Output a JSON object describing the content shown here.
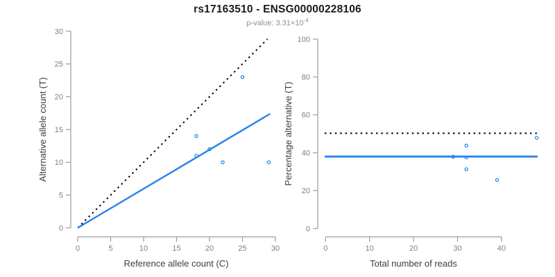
{
  "header": {
    "title": "rs17163510 - ENSG00000228106",
    "subtitle_prefix": "p-value: 3.31×10",
    "subtitle_exponent": "-4"
  },
  "colors": {
    "accent_blue": "#2583E8",
    "reference_black": "#000000",
    "axis_line_gray": "#9a9a9a",
    "tick_label_gray": "#7f7f7f",
    "axis_title_gray": "#3d3d3d",
    "title_black": "#1a1a1a",
    "subtitle_gray": "#8f8f8f"
  },
  "chart_data": [
    {
      "type": "scatter",
      "name": "allele-counts-panel",
      "xlabel": "Reference allele count (C)",
      "ylabel": "Alternative allele count (T)",
      "xlim": [
        0,
        30
      ],
      "ylim": [
        0,
        30
      ],
      "xticks": [
        0,
        5,
        10,
        15,
        20,
        25,
        30
      ],
      "yticks": [
        0,
        5,
        10,
        15,
        20,
        25,
        30
      ],
      "grid": false,
      "legend": "none",
      "points": [
        {
          "x": 25,
          "y": 23
        },
        {
          "x": 18,
          "y": 14
        },
        {
          "x": 20,
          "y": 12
        },
        {
          "x": 18,
          "y": 11
        },
        {
          "x": 22,
          "y": 10
        },
        {
          "x": 29,
          "y": 10
        }
      ],
      "lines": [
        {
          "name": "identity-line",
          "style": "dotted",
          "color_key": "reference_black",
          "width": 2.0,
          "from": [
            0,
            0
          ],
          "to": [
            28.8,
            28.8
          ]
        },
        {
          "name": "fit-line",
          "style": "solid",
          "color_key": "accent_blue",
          "width": 2.4,
          "from": [
            0,
            0
          ],
          "to": [
            29.2,
            17.4
          ]
        }
      ]
    },
    {
      "type": "scatter",
      "name": "percentage-panel",
      "xlabel": "Total number of reads",
      "ylabel": "Percentage alternative (T)",
      "xlim": [
        0,
        48.2
      ],
      "ylim": [
        0,
        100
      ],
      "xticks": [
        0,
        10,
        20,
        30,
        40
      ],
      "yticks": [
        0,
        20,
        40,
        60,
        80,
        100
      ],
      "grid": false,
      "legend": "none",
      "points": [
        {
          "x": 29,
          "y": 37.9
        },
        {
          "x": 32,
          "y": 43.8
        },
        {
          "x": 32,
          "y": 37.5
        },
        {
          "x": 32,
          "y": 31.3
        },
        {
          "x": 39,
          "y": 25.6
        },
        {
          "x": 48,
          "y": 47.9
        }
      ],
      "lines": [
        {
          "name": "fifty-percent-line",
          "style": "dotted",
          "color_key": "reference_black",
          "width": 2.2,
          "from": [
            -0.2,
            50.3
          ],
          "to": [
            48.2,
            50.3
          ]
        },
        {
          "name": "mean-percentage-line",
          "style": "solid",
          "color_key": "accent_blue",
          "width": 2.8,
          "from": [
            -0.2,
            38
          ],
          "to": [
            48.2,
            38
          ]
        }
      ]
    }
  ]
}
